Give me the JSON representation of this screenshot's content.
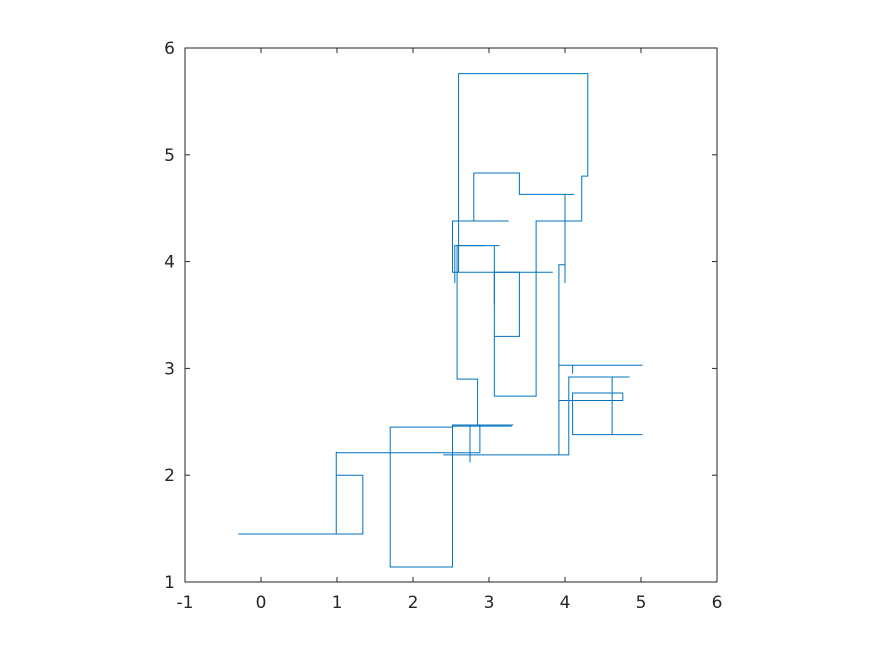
{
  "chart_data": {
    "type": "line",
    "title": "",
    "xlabel": "",
    "ylabel": "",
    "xlim": [
      -1,
      6
    ],
    "ylim": [
      1,
      6
    ],
    "x_ticks": [
      "-1",
      "0",
      "1",
      "2",
      "3",
      "4",
      "5",
      "6"
    ],
    "y_ticks": [
      "1",
      "2",
      "3",
      "4",
      "5",
      "6"
    ],
    "grid": false,
    "legend": "none",
    "line_color": "#0072BD",
    "axis_color": "#262626",
    "series": [
      {
        "points": [
          [
            -0.3,
            1.45
          ],
          [
            0.99,
            1.45
          ],
          [
            0.99,
            2.0
          ],
          [
            1.34,
            2.0
          ],
          [
            1.34,
            1.45
          ],
          [
            0.1,
            1.45
          ],
          [
            0.99,
            1.45
          ],
          [
            0.99,
            2.22
          ],
          [
            0.99,
            2.21
          ],
          [
            2.88,
            2.21
          ],
          [
            2.88,
            2.47
          ],
          [
            2.52,
            2.47
          ],
          [
            2.52,
            1.14
          ],
          [
            1.7,
            1.14
          ],
          [
            1.7,
            2.45
          ],
          [
            2.52,
            2.45
          ],
          [
            2.52,
            2.46
          ],
          [
            3.3,
            2.46
          ],
          [
            2.75,
            2.46
          ],
          [
            2.75,
            2.12
          ],
          [
            2.75,
            2.47
          ],
          [
            3.32,
            2.47
          ],
          [
            2.85,
            2.47
          ],
          [
            2.85,
            2.85
          ],
          [
            2.85,
            2.9
          ],
          [
            2.58,
            2.9
          ],
          [
            2.58,
            4.15
          ],
          [
            3.14,
            4.15
          ],
          [
            3.07,
            4.15
          ],
          [
            3.07,
            2.74
          ],
          [
            3.62,
            2.74
          ],
          [
            3.62,
            4.38
          ],
          [
            4.22,
            4.38
          ],
          [
            4.22,
            4.8
          ],
          [
            4.3,
            4.8
          ],
          [
            4.3,
            5.76
          ],
          [
            2.6,
            5.76
          ],
          [
            2.6,
            3.9
          ],
          [
            3.84,
            3.9
          ],
          [
            2.52,
            3.9
          ],
          [
            2.52,
            4.38
          ],
          [
            3.26,
            4.38
          ],
          [
            2.8,
            4.38
          ],
          [
            2.8,
            4.83
          ],
          [
            3.4,
            4.83
          ],
          [
            3.4,
            4.63
          ],
          [
            4.12,
            4.63
          ],
          [
            4.0,
            4.63
          ],
          [
            4.0,
            3.8
          ],
          [
            4.0,
            3.97
          ],
          [
            3.92,
            3.97
          ],
          [
            3.92,
            2.7
          ],
          [
            4.76,
            2.7
          ],
          [
            4.76,
            2.77
          ],
          [
            4.1,
            2.77
          ],
          [
            4.1,
            2.38
          ],
          [
            5.02,
            2.38
          ],
          [
            4.47,
            2.38
          ],
          [
            4.62,
            2.38
          ],
          [
            4.62,
            2.92
          ],
          [
            4.85,
            2.92
          ],
          [
            4.05,
            2.92
          ],
          [
            4.05,
            2.19
          ],
          [
            3.04,
            2.19
          ],
          [
            2.4,
            2.19
          ],
          [
            3.92,
            2.19
          ],
          [
            3.92,
            3.03
          ],
          [
            5.02,
            3.03
          ],
          [
            4.1,
            3.03
          ],
          [
            4.1,
            2.95
          ],
          [
            4.1,
            3.03
          ]
        ]
      },
      {
        "points": [
          [
            3.07,
            3.3
          ],
          [
            3.4,
            3.3
          ],
          [
            3.4,
            3.9
          ],
          [
            3.07,
            3.9
          ],
          [
            3.07,
            3.6
          ]
        ]
      },
      {
        "points": [
          [
            2.55,
            3.8
          ],
          [
            2.55,
            4.15
          ],
          [
            2.95,
            4.15
          ]
        ]
      }
    ]
  }
}
